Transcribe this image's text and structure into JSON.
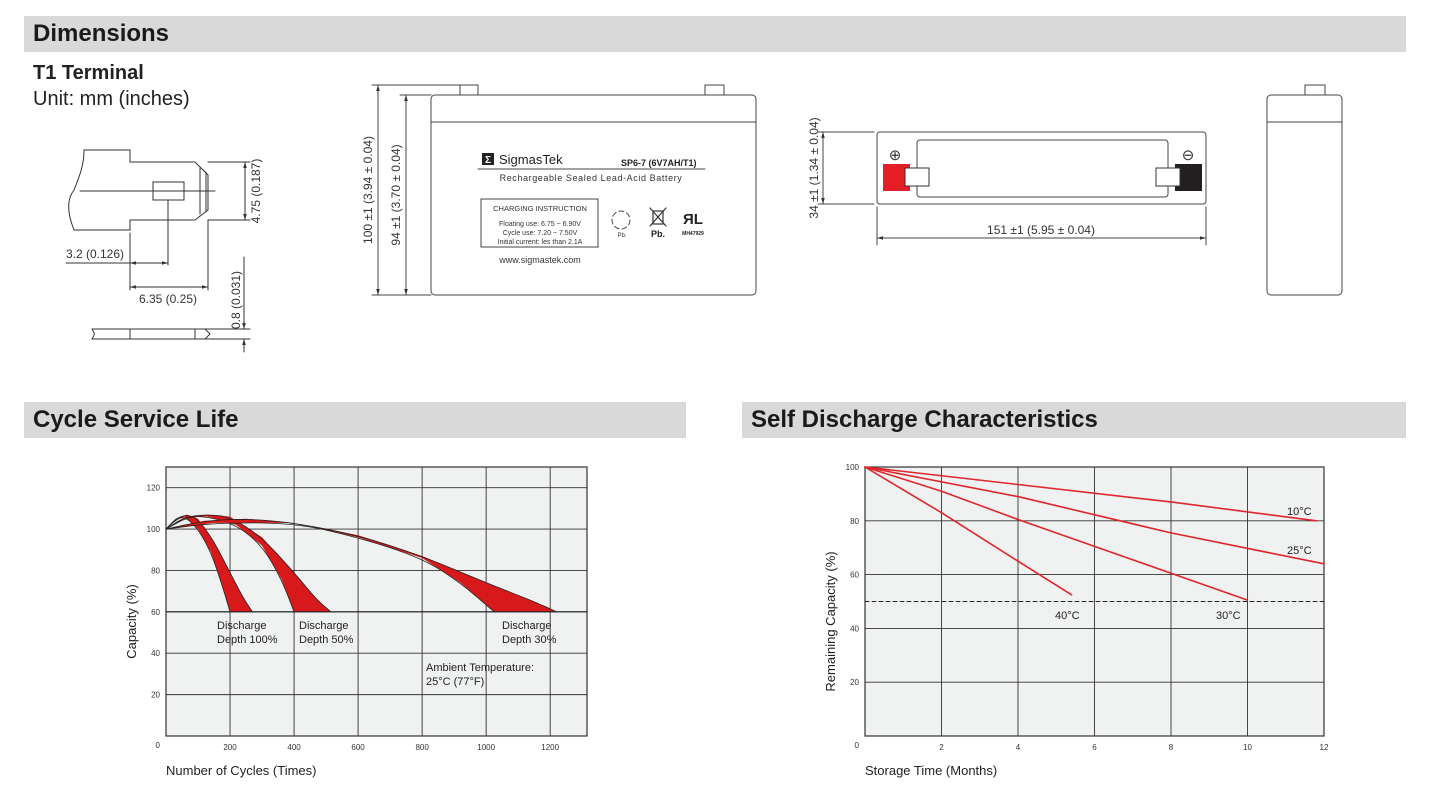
{
  "sections": {
    "dimensions": "Dimensions",
    "cycle": "Cycle Service Life",
    "self_discharge": "Self Discharge Characteristics"
  },
  "terminal": {
    "title": "T1 Terminal",
    "unit": "Unit: mm (inches)",
    "dim_width_slot": "3.2 (0.126)",
    "dim_width_tab": "6.35 (0.25)",
    "dim_height": "4.75 (0.187)",
    "dim_thickness": "0.8 (0.031)"
  },
  "front": {
    "height_total": "100 ±1 (3.94 ± 0.04)",
    "height_case": "94 ±1 (3.70 ± 0.04)",
    "brand": "SigmasTek",
    "brand_logo": "Σ",
    "model": "SP6-7 (6V7AH/T1)",
    "subtitle": "Rechargeable Sealed Lead-Acid Battery",
    "charging_title": "CHARGING INSTRUCTION",
    "charging_lines": [
      "Floating use: 6.75 ~ 6.90V",
      "Cycle use: 7.20 ~ 7.50V",
      "Initial current: les than 2.1A"
    ],
    "recycle_label": "Pb.",
    "bin_label": "Pb.",
    "ul_code": "MH47929",
    "website": "www.sigmastek.com"
  },
  "top": {
    "width": "34 ±1 (1.34 ± 0.04)",
    "length": "151 ±1 (5.95 ± 0.04)",
    "positive_symbol": "⊕",
    "negative_symbol": "⊖",
    "positive_color": "#e31e24",
    "negative_color": "#231f20"
  },
  "chart_data": [
    {
      "type": "area",
      "id": "cycle",
      "xlabel": "Number of Cycles (Times)",
      "ylabel": "Capacity (%)",
      "xlim": [
        0,
        1315
      ],
      "ylim": [
        0,
        130
      ],
      "xticks": [
        200,
        400,
        600,
        800,
        1000,
        1200
      ],
      "yticks": [
        0,
        20,
        40,
        60,
        80,
        100,
        120
      ],
      "grid": true,
      "color": "#d7191c",
      "bands": [
        {
          "label": [
            "Discharge",
            "Depth 100%"
          ],
          "upper": [
            [
              0,
              100
            ],
            [
              30,
              105
            ],
            [
              65,
              107
            ],
            [
              100,
              105
            ],
            [
              150,
              94
            ],
            [
              200,
              79
            ],
            [
              240,
              67
            ],
            [
              270,
              60
            ]
          ],
          "lower": [
            [
              0,
              100
            ],
            [
              35,
              105
            ],
            [
              60,
              106
            ],
            [
              100,
              100
            ],
            [
              140,
              89
            ],
            [
              175,
              73
            ],
            [
              200,
              60
            ]
          ]
        },
        {
          "label": [
            "Discharge",
            "Depth 50%"
          ],
          "upper": [
            [
              0,
              100
            ],
            [
              60,
              106
            ],
            [
              130,
              107
            ],
            [
              200,
              106
            ],
            [
              300,
              96
            ],
            [
              400,
              79
            ],
            [
              470,
              66
            ],
            [
              515,
              60
            ]
          ],
          "lower": [
            [
              0,
              100
            ],
            [
              70,
              106
            ],
            [
              130,
              106
            ],
            [
              220,
              102
            ],
            [
              300,
              92
            ],
            [
              360,
              76
            ],
            [
              400,
              60
            ]
          ]
        },
        {
          "label": [
            "Discharge",
            "Depth 30%"
          ],
          "upper": [
            [
              0,
              100
            ],
            [
              120,
              104
            ],
            [
              250,
              105
            ],
            [
              400,
              103
            ],
            [
              600,
              97
            ],
            [
              800,
              87
            ],
            [
              1000,
              74
            ],
            [
              1150,
              65
            ],
            [
              1220,
              60
            ]
          ],
          "lower": [
            [
              0,
              100
            ],
            [
              150,
              103
            ],
            [
              400,
              103
            ],
            [
              600,
              96
            ],
            [
              800,
              86
            ],
            [
              920,
              74
            ],
            [
              1025,
              60
            ]
          ]
        }
      ],
      "annotation": [
        "Ambient Temperature:",
        "25°C (77°F)"
      ]
    },
    {
      "type": "line",
      "id": "self_discharge",
      "xlabel": "Storage Time (Months)",
      "ylabel": "Remaining Capacity (%)",
      "xlim": [
        0,
        12
      ],
      "ylim": [
        0,
        100
      ],
      "xticks": [
        0,
        2,
        4,
        6,
        8,
        10,
        12
      ],
      "yticks": [
        0,
        20,
        40,
        60,
        80,
        100
      ],
      "grid": true,
      "reference_line": 50,
      "color": "#e0262b",
      "series": [
        {
          "name": "10°C",
          "points": [
            [
              0,
              100
            ],
            [
              4,
              93.5
            ],
            [
              8,
              87
            ],
            [
              11.8,
              80
            ]
          ]
        },
        {
          "name": "25°C",
          "points": [
            [
              0,
              100
            ],
            [
              4,
              89
            ],
            [
              8,
              75.5
            ],
            [
              12,
              64
            ]
          ]
        },
        {
          "name": "30°C",
          "points": [
            [
              0,
              100
            ],
            [
              2,
              91
            ],
            [
              4,
              80.5
            ],
            [
              6,
              70.5
            ],
            [
              8,
              60.5
            ],
            [
              10,
              50.5
            ]
          ]
        },
        {
          "name": "40°C",
          "points": [
            [
              0,
              100
            ],
            [
              2,
              83
            ],
            [
              4,
              65
            ],
            [
              5.4,
              52.5
            ]
          ]
        }
      ]
    }
  ]
}
